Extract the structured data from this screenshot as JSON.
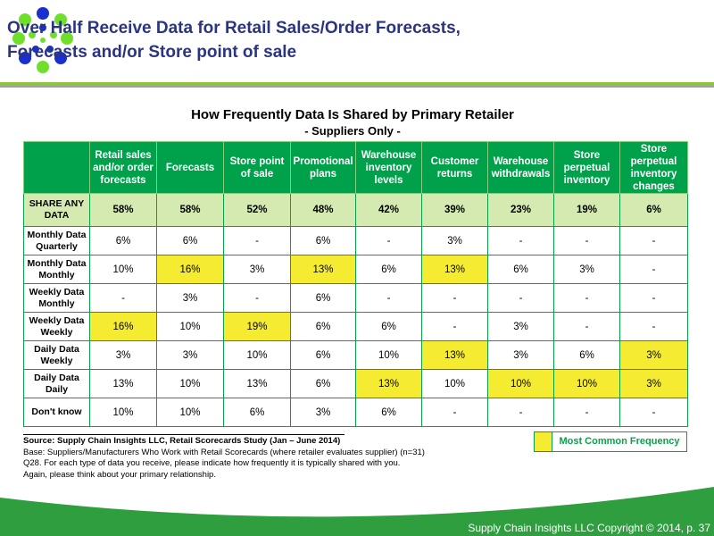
{
  "slide_title_lines": [
    "Over Half Receive Data for Retail Sales/Order Forecasts,",
    "Forecasts and/or Store point of sale"
  ],
  "table_title": "How Frequently Data Is Shared by Primary Retailer",
  "table_subtitle": "- Suppliers Only -",
  "columns": [
    "Retail sales and/or order forecasts",
    "Forecasts",
    "Store point of sale",
    "Promotional plans",
    "Warehouse inventory levels",
    "Customer returns",
    "Warehouse withdrawals",
    "Store perpetual inventory",
    "Store perpetual inventory changes"
  ],
  "share_row": {
    "label": "SHARE ANY DATA",
    "values": [
      "58%",
      "58%",
      "52%",
      "48%",
      "42%",
      "39%",
      "23%",
      "19%",
      "6%"
    ]
  },
  "rows": [
    {
      "label": "Monthly Data Quarterly",
      "values": [
        "6%",
        "6%",
        "-",
        "6%",
        "-",
        "3%",
        "-",
        "-",
        "-"
      ],
      "highlight": []
    },
    {
      "label": "Monthly Data Monthly",
      "values": [
        "10%",
        "16%",
        "3%",
        "13%",
        "6%",
        "13%",
        "6%",
        "3%",
        "-"
      ],
      "highlight": [
        1,
        3,
        5
      ]
    },
    {
      "label": "Weekly Data Monthly",
      "values": [
        "-",
        "3%",
        "-",
        "6%",
        "-",
        "-",
        "-",
        "-",
        "-"
      ],
      "highlight": []
    },
    {
      "label": "Weekly Data Weekly",
      "values": [
        "16%",
        "10%",
        "19%",
        "6%",
        "6%",
        "-",
        "3%",
        "-",
        "-"
      ],
      "highlight": [
        0,
        2
      ]
    },
    {
      "label": "Daily Data Weekly",
      "values": [
        "3%",
        "3%",
        "10%",
        "6%",
        "10%",
        "13%",
        "3%",
        "6%",
        "3%"
      ],
      "highlight": [
        5,
        8
      ]
    },
    {
      "label": "Daily Data Daily",
      "values": [
        "13%",
        "10%",
        "13%",
        "6%",
        "13%",
        "10%",
        "10%",
        "10%",
        "3%"
      ],
      "highlight": [
        4,
        6,
        7,
        8
      ]
    },
    {
      "label": "Don't know",
      "values": [
        "10%",
        "10%",
        "6%",
        "3%",
        "6%",
        "-",
        "-",
        "-",
        "-"
      ],
      "highlight": []
    }
  ],
  "highlight_color": "#f5ec32",
  "header_color": "#00a14b",
  "legend_label": "Most Common Frequency",
  "notes": {
    "source": "Source:  Supply Chain Insights LLC, Retail Scorecards Study (Jan – June 2014)",
    "base": "Base: Suppliers/Manufacturers Who Work with Retail Scorecards (where retailer evaluates supplier) (n=31)",
    "question": "Q28. For each type of data you receive, please indicate how frequently it is typically shared with you.",
    "again": "Again, please think about your primary relationship."
  },
  "footer": "Supply Chain Insights LLC Copyright © 2014, p. 37"
}
